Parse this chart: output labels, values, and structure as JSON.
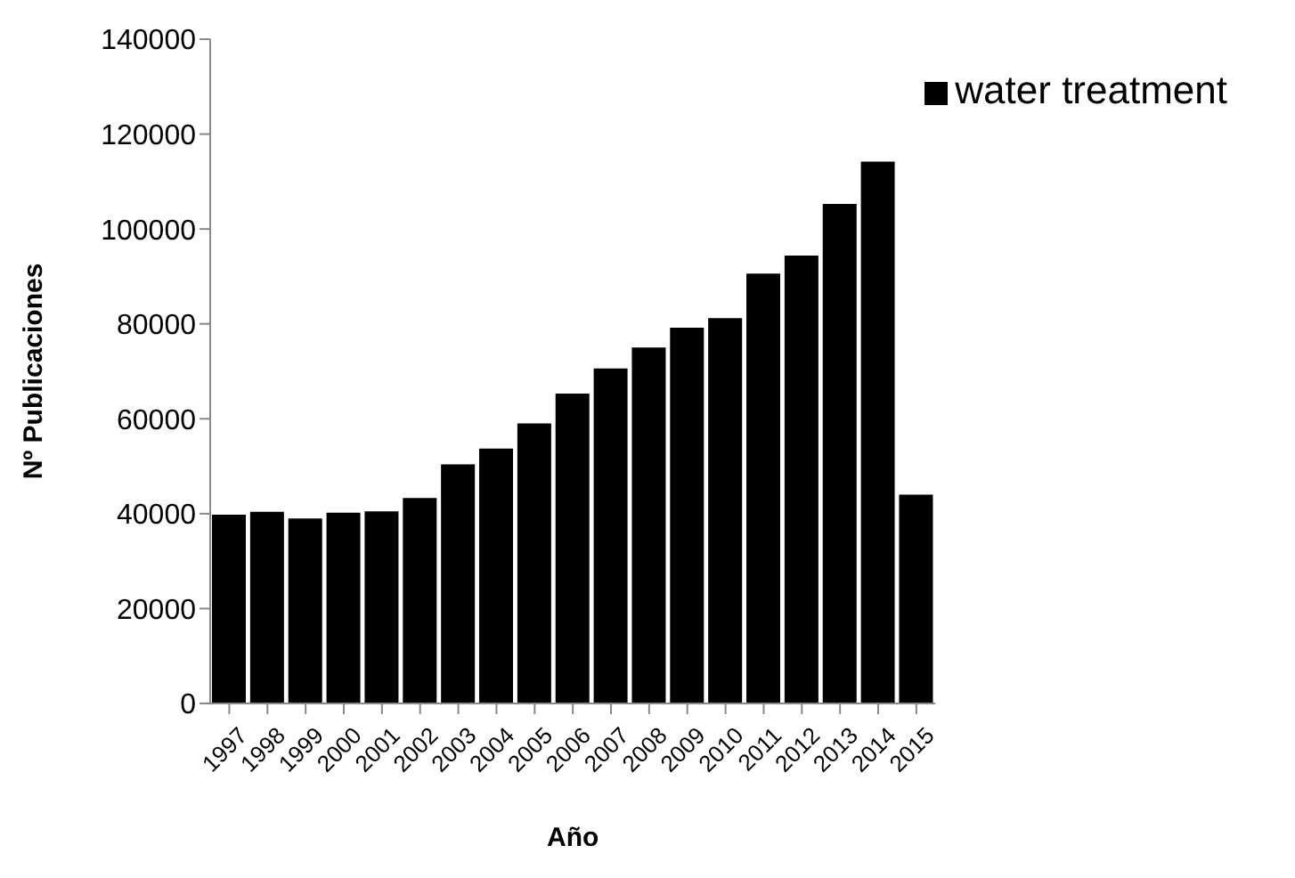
{
  "chart_data": {
    "type": "bar",
    "xlabel": "Año",
    "ylabel": "Nº Publicaciones",
    "categories": [
      "1997",
      "1998",
      "1999",
      "2000",
      "2001",
      "2002",
      "2003",
      "2004",
      "2005",
      "2006",
      "2007",
      "2008",
      "2009",
      "2010",
      "2011",
      "2012",
      "2013",
      "2014",
      "2015"
    ],
    "series": [
      {
        "name": "water treatment",
        "color": "#000000",
        "values": [
          39800,
          40400,
          39000,
          40200,
          40500,
          43300,
          50400,
          53700,
          59000,
          65300,
          70600,
          75000,
          79200,
          81200,
          90600,
          94400,
          105300,
          114200,
          44000
        ]
      }
    ],
    "ylim": [
      0,
      140000
    ],
    "yticks": [
      0,
      20000,
      40000,
      60000,
      80000,
      100000,
      120000,
      140000
    ],
    "grid": false,
    "legend": "top right"
  }
}
